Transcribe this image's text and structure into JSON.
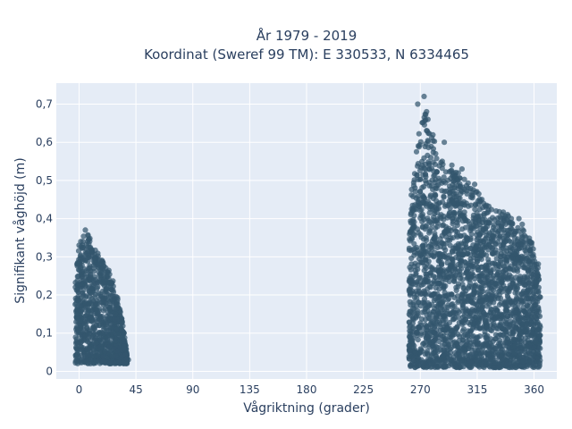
{
  "chart_data": {
    "type": "scatter",
    "title_line1": "År 1979 - 2019",
    "title_line2": "Koordinat (Sweref 99 TM): E 330533, N 6334465",
    "xlabel": "Vågriktning (grader)",
    "ylabel": "Signifikant våghöjd (m)",
    "xlim": [
      -18,
      378
    ],
    "ylim": [
      -0.02,
      0.755
    ],
    "xticks": [
      0,
      45,
      90,
      135,
      180,
      225,
      270,
      315,
      360
    ],
    "xtick_labels": [
      "0",
      "45",
      "90",
      "135",
      "180",
      "225",
      "270",
      "315",
      "360"
    ],
    "yticks": [
      0,
      0.1,
      0.2,
      0.3,
      0.4,
      0.5,
      0.6,
      0.7
    ],
    "ytick_labels": [
      "0",
      "0,1",
      "0,2",
      "0,3",
      "0,4",
      "0,5",
      "0,6",
      "0,7"
    ],
    "grid": true,
    "marker_color": "#33566e",
    "plot_bg": "#e5ecf6",
    "clusters": [
      {
        "direction_range": [
          -3,
          38
        ],
        "height_range": [
          0.02,
          0.37
        ],
        "envelope": [
          [
            -3,
            0.24
          ],
          [
            0,
            0.33
          ],
          [
            5,
            0.37
          ],
          [
            10,
            0.34
          ],
          [
            15,
            0.31
          ],
          [
            20,
            0.28
          ],
          [
            25,
            0.26
          ],
          [
            30,
            0.2
          ],
          [
            35,
            0.12
          ],
          [
            38,
            0.04
          ]
        ]
      },
      {
        "direction_range": [
          261,
          365
        ],
        "height_range": [
          0.01,
          0.72
        ],
        "envelope": [
          [
            261,
            0.32
          ],
          [
            263,
            0.48
          ],
          [
            266,
            0.58
          ],
          [
            270,
            0.64
          ],
          [
            273,
            0.72
          ],
          [
            276,
            0.66
          ],
          [
            280,
            0.62
          ],
          [
            285,
            0.56
          ],
          [
            290,
            0.54
          ],
          [
            300,
            0.52
          ],
          [
            310,
            0.49
          ],
          [
            315,
            0.47
          ],
          [
            320,
            0.45
          ],
          [
            325,
            0.43
          ],
          [
            330,
            0.42
          ],
          [
            340,
            0.42
          ],
          [
            345,
            0.37
          ],
          [
            350,
            0.4
          ],
          [
            355,
            0.36
          ],
          [
            360,
            0.33
          ],
          [
            364,
            0.28
          ],
          [
            365,
            0.2
          ]
        ]
      }
    ],
    "outliers": [
      {
        "x": 5,
        "y": 0.37
      },
      {
        "x": 3,
        "y": 0.34
      },
      {
        "x": 0,
        "y": 0.33
      },
      {
        "x": 39,
        "y": 0.03
      },
      {
        "x": 268,
        "y": 0.7
      },
      {
        "x": 273,
        "y": 0.72
      },
      {
        "x": 275,
        "y": 0.68
      },
      {
        "x": 276,
        "y": 0.66
      },
      {
        "x": 289,
        "y": 0.6
      },
      {
        "x": 295,
        "y": 0.54
      },
      {
        "x": 303,
        "y": 0.53
      },
      {
        "x": 313,
        "y": 0.49
      },
      {
        "x": 320,
        "y": 0.44
      },
      {
        "x": 330,
        "y": 0.42
      },
      {
        "x": 342,
        "y": 0.4
      },
      {
        "x": 348,
        "y": 0.4
      },
      {
        "x": 358,
        "y": 0.33
      }
    ]
  }
}
